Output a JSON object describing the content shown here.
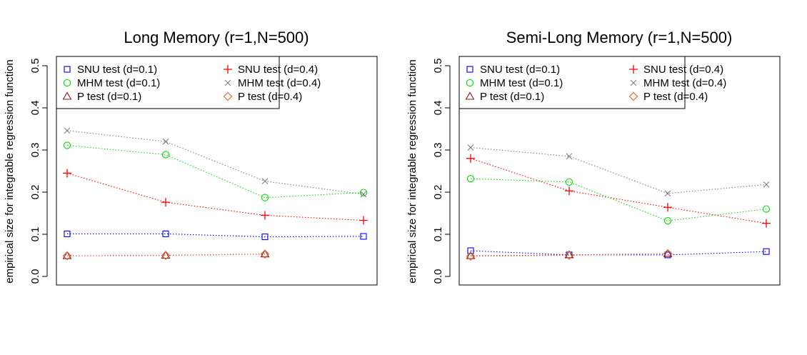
{
  "chart_data": [
    {
      "type": "line",
      "title": "Long Memory (r=1,N=500)",
      "xlabel": "",
      "ylabel": "empirical size for integrable regression function",
      "ylim": [
        0,
        0.5
      ],
      "yticks": [
        "0.0",
        "0.1",
        "0.2",
        "0.3",
        "0.4",
        "0.5"
      ],
      "x": [
        1,
        2,
        3,
        4
      ],
      "grid": false,
      "legend_position": "top-left",
      "series": [
        {
          "name": "SNU test (d=0.1)",
          "color": "#0000ff",
          "marker": "square",
          "values": [
            0.101,
            0.101,
            0.094,
            0.095
          ]
        },
        {
          "name": "SNU test (d=0.4)",
          "color": "#ff0000",
          "marker": "plus",
          "values": [
            0.245,
            0.176,
            0.145,
            0.133
          ]
        },
        {
          "name": "MHM test (d=0.1)",
          "color": "#00dd00",
          "marker": "circle",
          "values": [
            0.311,
            0.289,
            0.187,
            0.199
          ]
        },
        {
          "name": "MHM test (d=0.4)",
          "color": "#808080",
          "marker": "cross",
          "values": [
            0.346,
            0.32,
            0.226,
            0.195
          ]
        },
        {
          "name": "P test (d=0.1)",
          "color": "#8b1a1a",
          "marker": "triangle",
          "values": [
            0.049,
            0.05,
            0.053,
            null
          ]
        },
        {
          "name": "P test (d=0.4)",
          "color": "#e0602a",
          "marker": "diamond",
          "values": [
            0.049,
            0.05,
            0.053,
            null
          ]
        }
      ]
    },
    {
      "type": "line",
      "title": "Semi-Long Memory (r=1,N=500)",
      "xlabel": "",
      "ylabel": "empirical size for integrable regression function",
      "ylim": [
        0,
        0.5
      ],
      "yticks": [
        "0.0",
        "0.1",
        "0.2",
        "0.3",
        "0.4",
        "0.5"
      ],
      "x": [
        1,
        2,
        3,
        4
      ],
      "grid": false,
      "legend_position": "top-left",
      "series": [
        {
          "name": "SNU test (d=0.1)",
          "color": "#0000ff",
          "marker": "square",
          "values": [
            0.061,
            0.051,
            0.051,
            0.059
          ]
        },
        {
          "name": "SNU test (d=0.4)",
          "color": "#ff0000",
          "marker": "plus",
          "values": [
            0.28,
            0.203,
            0.164,
            0.126
          ]
        },
        {
          "name": "MHM test (d=0.1)",
          "color": "#00dd00",
          "marker": "circle",
          "values": [
            0.232,
            0.224,
            0.132,
            0.16
          ]
        },
        {
          "name": "MHM test (d=0.4)",
          "color": "#808080",
          "marker": "cross",
          "values": [
            0.306,
            0.285,
            0.197,
            0.218
          ]
        },
        {
          "name": "P test (d=0.1)",
          "color": "#8b1a1a",
          "marker": "triangle",
          "values": [
            0.049,
            0.051,
            0.054,
            null
          ]
        },
        {
          "name": "P test (d=0.4)",
          "color": "#e0602a",
          "marker": "diamond",
          "values": [
            0.048,
            0.05,
            0.054,
            null
          ]
        }
      ]
    }
  ]
}
